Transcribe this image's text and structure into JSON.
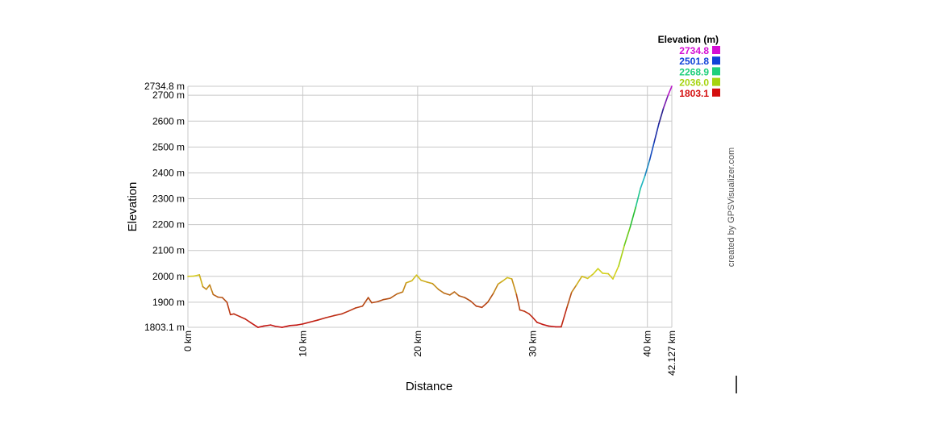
{
  "chart_data": {
    "type": "line",
    "xlabel": "Distance",
    "ylabel": "Elevation",
    "xlim": [
      0,
      42.127
    ],
    "ylim": [
      1803.1,
      2734.8
    ],
    "x_unit": "km",
    "y_unit": "m",
    "x_ticks": [
      "0 km",
      "10 km",
      "20 km",
      "30 km",
      "40 km",
      "42.127 km"
    ],
    "x_tick_values": [
      0,
      10,
      20,
      30,
      40,
      42.127
    ],
    "y_ticks": [
      "1803.1 m",
      "1900 m",
      "2000 m",
      "2100 m",
      "2200 m",
      "2300 m",
      "2400 m",
      "2500 m",
      "2600 m",
      "2700 m",
      "2734.8 m"
    ],
    "y_tick_values": [
      1803.1,
      1900,
      2000,
      2100,
      2200,
      2300,
      2400,
      2500,
      2600,
      2700,
      2734.8
    ],
    "grid": true,
    "legend": {
      "title": "Elevation (m)",
      "placement": "top-right",
      "entries": [
        {
          "label": "2734.8",
          "color": "#d40fd4"
        },
        {
          "label": "2501.8",
          "color": "#1042d8"
        },
        {
          "label": "2268.9",
          "color": "#1fcf7c"
        },
        {
          "label": "2036.0",
          "color": "#a6d40f"
        },
        {
          "label": "1803.1",
          "color": "#d40f0f"
        }
      ]
    },
    "credit": "created by GPSVisualizer.com",
    "series": [
      {
        "x": [
          0,
          0.5,
          1.0,
          1.3,
          1.6,
          1.9,
          2.2,
          2.6,
          3.0,
          3.4,
          3.7,
          4.0,
          4.5,
          5.0,
          5.5,
          6.1,
          6.6,
          7.2,
          7.6,
          8.2,
          8.9,
          9.5,
          10.0,
          10.6,
          11.3,
          12.0,
          12.7,
          13.4,
          14.0,
          14.6,
          15.2,
          15.7,
          16.0,
          16.5,
          17.0,
          17.6,
          18.2,
          18.7,
          19.0,
          19.5,
          19.9,
          20.3,
          20.8,
          21.3,
          21.8,
          22.3,
          22.8,
          23.2,
          23.6,
          24.1,
          24.6,
          25.1,
          25.6,
          26.1,
          26.6,
          27.0,
          27.4,
          27.8,
          28.2,
          28.6,
          28.9,
          29.3,
          29.7,
          30.0,
          30.4,
          30.9,
          31.4,
          32.0,
          32.5,
          33.0,
          33.4,
          33.8,
          34.3,
          34.8,
          35.3,
          35.7,
          36.1,
          36.6,
          37.0,
          37.5,
          38.0,
          38.5,
          39.0,
          39.4,
          39.8,
          40.2,
          40.6,
          41.0,
          41.4,
          41.8,
          42.127
        ],
        "y": [
          2000,
          2001,
          2006,
          1960,
          1950,
          1967,
          1930,
          1920,
          1918,
          1900,
          1852,
          1855,
          1845,
          1835,
          1820,
          1803,
          1808,
          1812,
          1807,
          1803,
          1810,
          1812,
          1816,
          1823,
          1831,
          1840,
          1848,
          1855,
          1866,
          1878,
          1885,
          1918,
          1898,
          1902,
          1910,
          1915,
          1932,
          1940,
          1975,
          1983,
          2005,
          1985,
          1978,
          1972,
          1950,
          1935,
          1928,
          1940,
          1925,
          1918,
          1905,
          1885,
          1880,
          1900,
          1935,
          1970,
          1982,
          1995,
          1990,
          1930,
          1870,
          1865,
          1855,
          1842,
          1822,
          1814,
          1808,
          1805,
          1805,
          1880,
          1938,
          1965,
          2000,
          1992,
          2010,
          2030,
          2012,
          2010,
          1990,
          2040,
          2120,
          2190,
          2270,
          2340,
          2390,
          2450,
          2520,
          2590,
          2650,
          2700,
          2734.8
        ]
      }
    ]
  }
}
